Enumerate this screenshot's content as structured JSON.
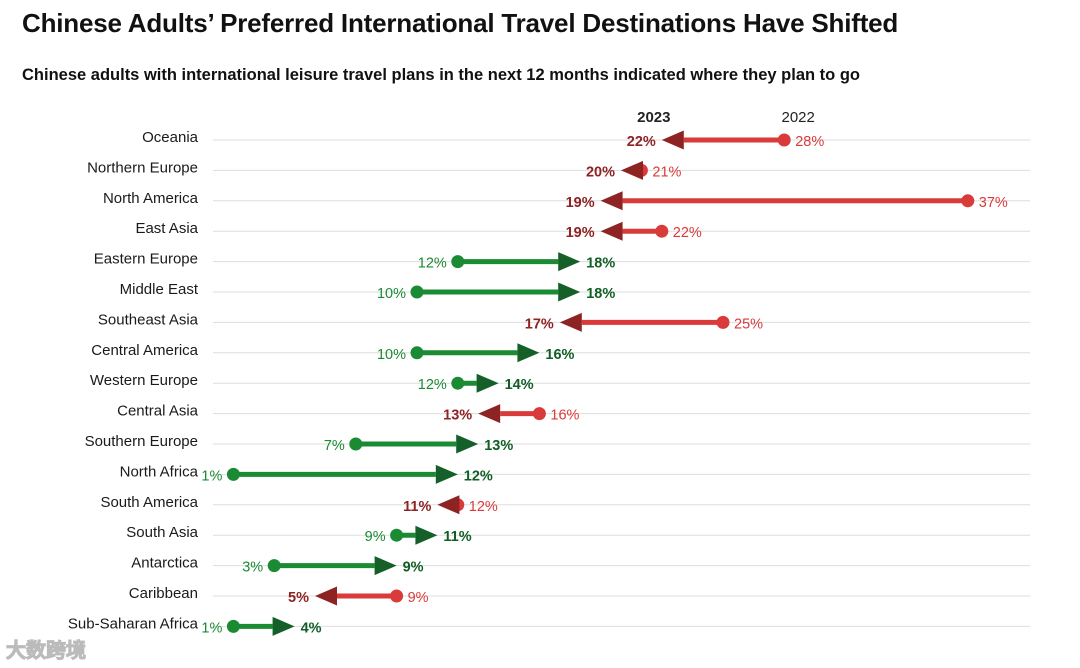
{
  "title": "Chinese Adults’ Preferred International Travel Destinations Have Shifted",
  "subtitle": "Chinese adults with international leisure travel plans in the next 12 months indicated where they plan to go",
  "watermark": "大数跨境",
  "colors": {
    "decrease": "#d93a3a",
    "decrease_text": "#8e2323",
    "decrease_arrow": "#8e2323",
    "increase": "#1a8a33",
    "increase_text": "#0f5e24",
    "increase_arrow": "#146028",
    "grid": "#dddddd"
  },
  "chart_data": {
    "type": "arrow-dumbbell",
    "title": "Chinese Adults’ Preferred International Travel Destinations Have Shifted",
    "subtitle": "Chinese adults with international leisure travel plans in the next 12 months indicated where they plan to go",
    "unit": "%",
    "xlim": [
      0,
      40
    ],
    "grid": "horizontal row lines",
    "legend": [
      "2023",
      "2022"
    ],
    "categories": [
      "Oceania",
      "Northern Europe",
      "North America",
      "East Asia",
      "Eastern Europe",
      "Middle East",
      "Southeast Asia",
      "Central America",
      "Western Europe",
      "Central Asia",
      "Southern Europe",
      "North Africa",
      "South America",
      "South Asia",
      "Antarctica",
      "Caribbean",
      "Sub-Saharan Africa"
    ],
    "series": [
      {
        "name": "2022",
        "values": [
          28,
          21,
          37,
          22,
          12,
          10,
          25,
          10,
          12,
          16,
          7,
          1,
          12,
          9,
          3,
          9,
          1
        ]
      },
      {
        "name": "2023",
        "values": [
          22,
          20,
          19,
          19,
          18,
          18,
          17,
          16,
          14,
          13,
          13,
          12,
          11,
          11,
          9,
          5,
          4
        ]
      }
    ]
  }
}
